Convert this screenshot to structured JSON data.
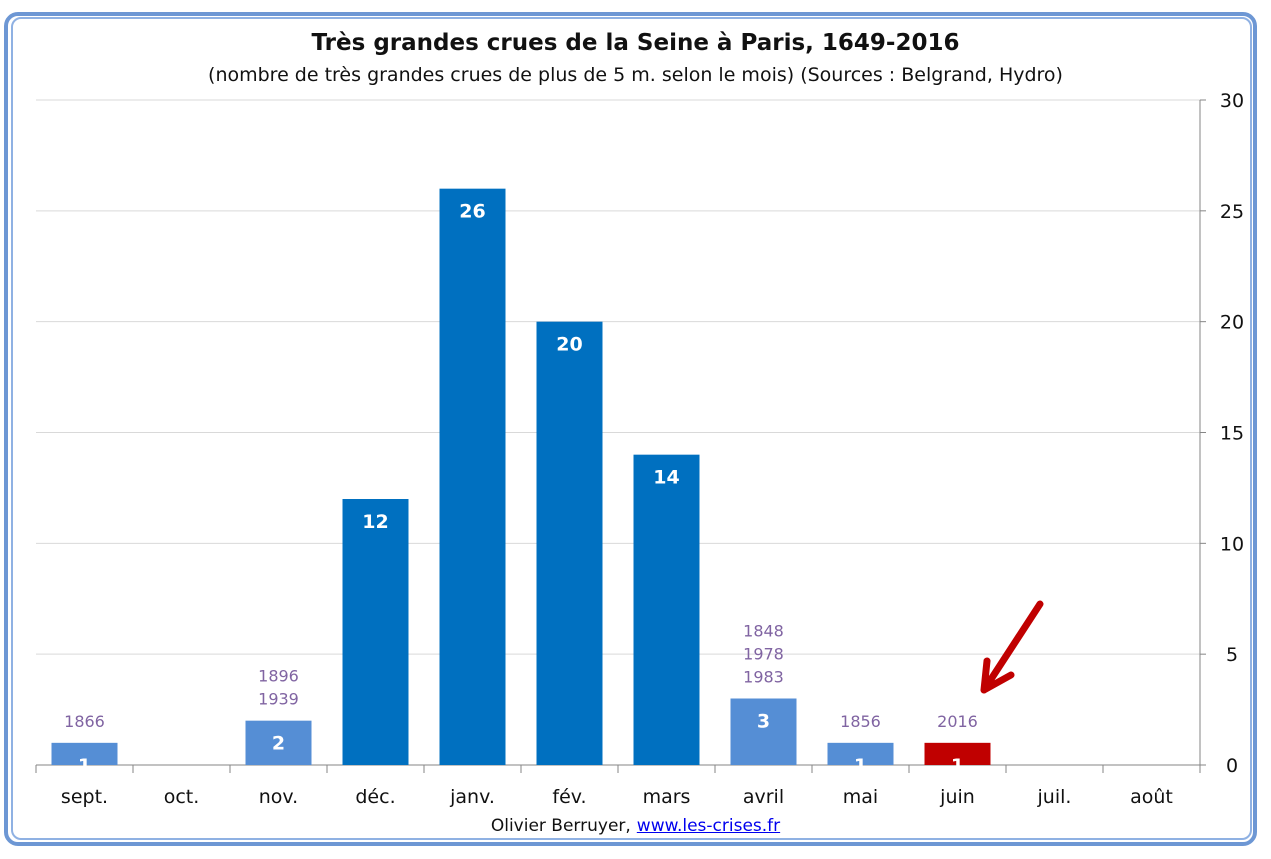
{
  "chart_data": {
    "type": "bar",
    "title": "Très grandes crues de la Seine à Paris, 1649-2016",
    "subtitle": "(nombre de très grandes crues de plus de 5 m. selon le mois) (Sources : Belgrand, Hydro)",
    "categories": [
      "sept.",
      "oct.",
      "nov.",
      "déc.",
      "janv.",
      "fév.",
      "mars",
      "avril",
      "mai",
      "juin",
      "juil.",
      "août"
    ],
    "values": [
      1,
      0,
      2,
      12,
      26,
      20,
      14,
      3,
      1,
      1,
      0,
      0
    ],
    "bar_colors": [
      "#558ED5",
      "#558ED5",
      "#558ED5",
      "#0070C0",
      "#0070C0",
      "#0070C0",
      "#0070C0",
      "#558ED5",
      "#558ED5",
      "#C00000",
      "#558ED5",
      "#558ED5"
    ],
    "year_annotations": [
      [
        "1866"
      ],
      [],
      [
        "1896",
        "1939"
      ],
      [],
      [],
      [],
      [],
      [
        "1848",
        "1978",
        "1983"
      ],
      [
        "1856"
      ],
      [
        "2016"
      ],
      [],
      []
    ],
    "annotation_color": "#8064A2",
    "highlight_color": "#C00000",
    "ylim": [
      0,
      30
    ],
    "yticks": [
      0,
      5,
      10,
      15,
      20,
      25,
      30
    ],
    "y_axis_side": "right",
    "grid": true,
    "xlabel": "",
    "ylabel": ""
  },
  "credit": {
    "author": "Olivier Berruyer,",
    "link": "www.les-crises.fr"
  }
}
